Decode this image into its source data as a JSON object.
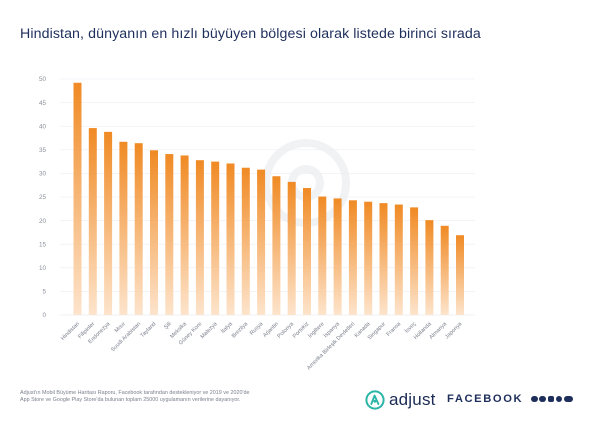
{
  "title": "Hindistan, dünyanın en hızlı büyüyen bölgesi olarak listede birinci sırada",
  "footnote": {
    "line1": "Adjust'ın Mobil Büyüme Haritası Raporu, Facebook tarafından destekleniyor ve 2019 ve 2020'de",
    "line2": "App Store ve Google Play Store'da bulunan toplam 25000 uygulamanın verilerine dayanıyor."
  },
  "brand": {
    "adjust": "adjust",
    "facebook": "FACEBOOK"
  },
  "colors": {
    "title": "#1f2f5c",
    "bar_top": "#f08a24",
    "bar_bottom": "#fde4cc",
    "accent_teal": "#2bb5a6",
    "grid": "#eceef1",
    "tick": "#8a8f9a"
  },
  "icons": [
    "adjust-logo-icon",
    "facebook-icon",
    "messenger-icon",
    "instagram-icon",
    "whatsapp-icon",
    "oculus-icon"
  ],
  "chart_data": {
    "type": "bar",
    "title": "Hindistan, dünyanın en hızlı büyüyen bölgesi olarak listede birinci sırada",
    "xlabel": "",
    "ylabel": "",
    "ylim": [
      0,
      50
    ],
    "yticks": [
      0,
      5,
      10,
      15,
      20,
      25,
      30,
      35,
      40,
      45,
      50
    ],
    "grid": true,
    "categories": [
      "Hindistan",
      "Filipinler",
      "Endonezya",
      "Mısır",
      "Suudi Arabistan",
      "Tayland",
      "Şili",
      "Meksika",
      "Güney Kore",
      "Malezya",
      "İtalya",
      "Brezilya",
      "Rusya",
      "Arjantin",
      "Polonya",
      "Portekiz",
      "İngiltere",
      "İspanya",
      "Amerika Birleşik Devletleri",
      "Kanada",
      "Singapur",
      "Fransa",
      "İsveç",
      "Hollanda",
      "Almanya",
      "Japonya"
    ],
    "values": [
      49.2,
      39.6,
      38.8,
      36.7,
      36.4,
      34.9,
      34.1,
      33.8,
      32.8,
      32.5,
      32.1,
      31.2,
      30.8,
      29.4,
      28.2,
      26.9,
      25.1,
      24.7,
      24.3,
      24.0,
      23.7,
      23.4,
      22.8,
      20.1,
      18.9,
      16.9
    ]
  }
}
